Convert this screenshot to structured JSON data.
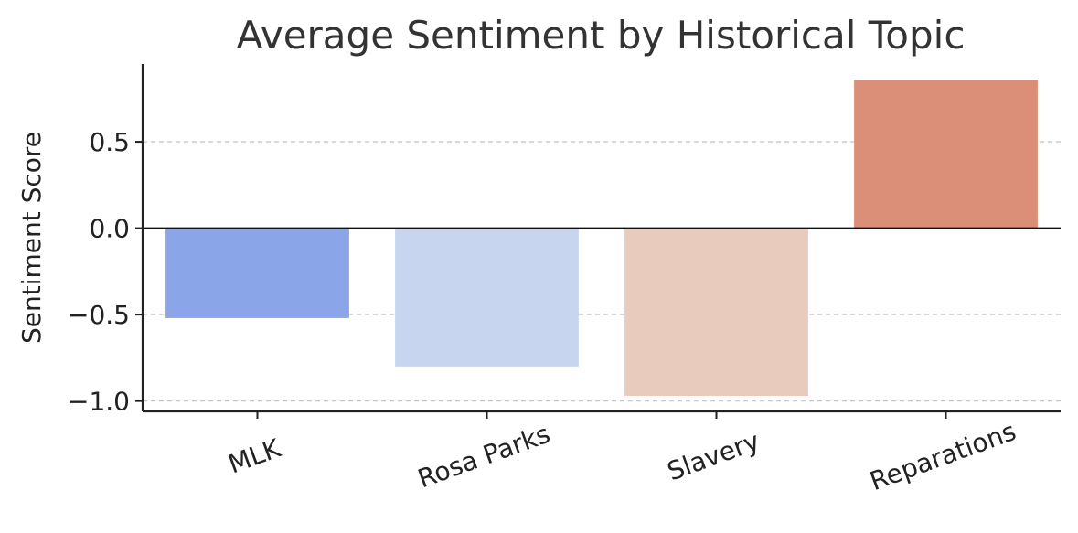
{
  "chart_data": {
    "type": "bar",
    "title": "Average Sentiment by Historical Topic",
    "xlabel": "",
    "ylabel": "Sentiment Score",
    "categories": [
      "MLK",
      "Rosa Parks",
      "Slavery",
      "Reparations"
    ],
    "values": [
      -0.52,
      -0.8,
      -0.97,
      0.86
    ],
    "colors": [
      "#8aa5e8",
      "#c7d5ef",
      "#e9cbbd",
      "#db8f78"
    ],
    "ylim": [
      -1.06,
      0.95
    ],
    "yticks": [
      0.5,
      0.0,
      -0.5,
      -1.0
    ],
    "ytick_labels": [
      "0.5",
      "0.0",
      "−0.5",
      "−1.0"
    ],
    "grid": {
      "axis": "y",
      "style": "dashed",
      "color": "#c8c8c8"
    },
    "zero_line": true,
    "legend": "none"
  }
}
